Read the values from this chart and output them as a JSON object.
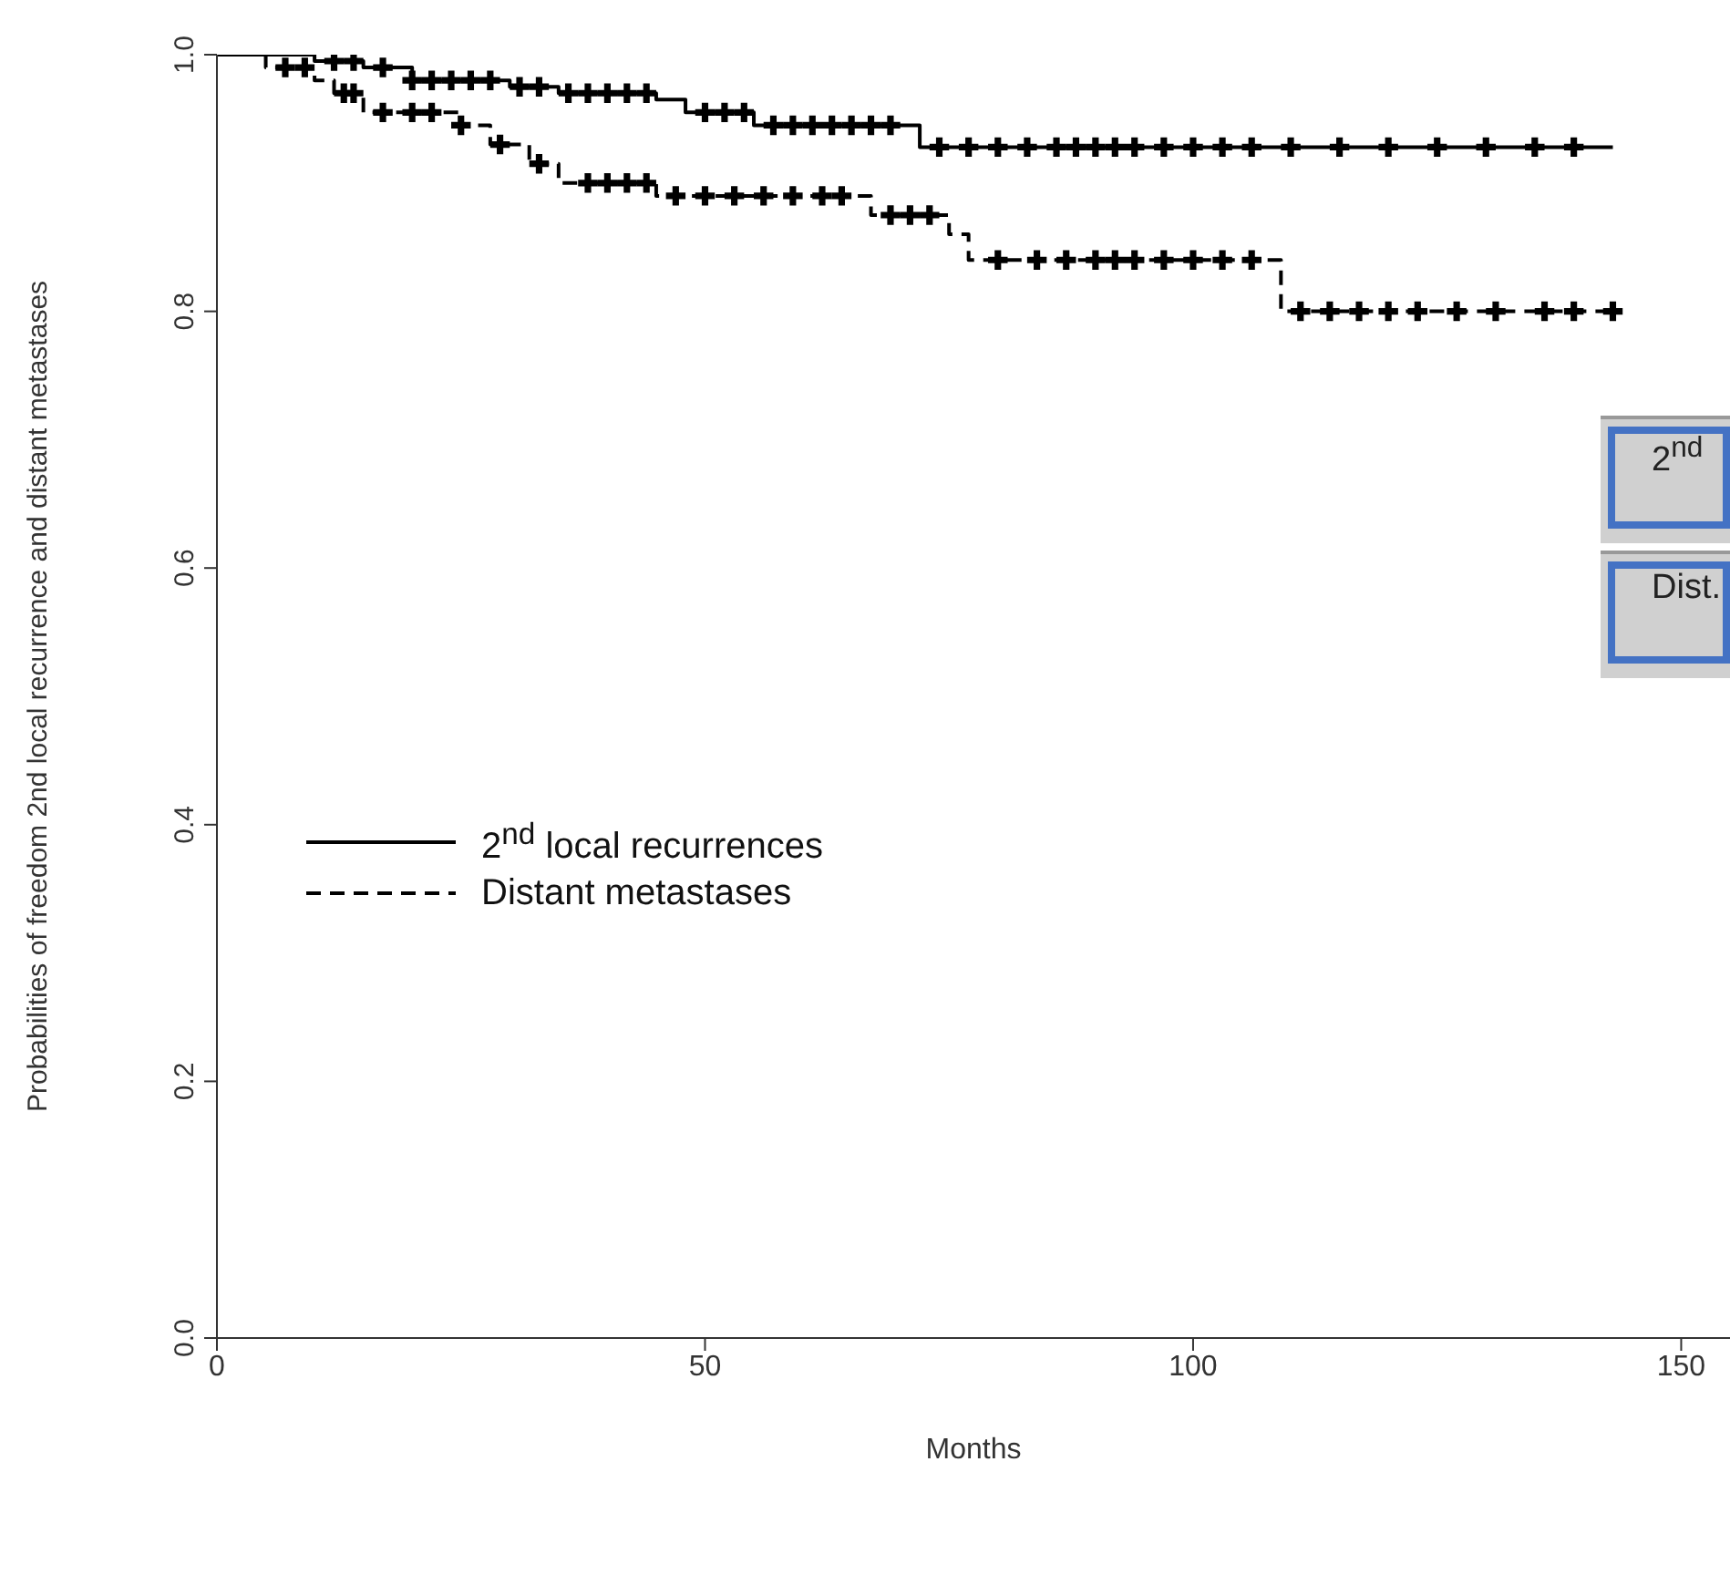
{
  "chart_data": {
    "type": "step",
    "xlabel": "Months",
    "ylabel": "Probabilities of freedom 2nd local recurrence and distant metastases",
    "xlim": [
      0,
      155
    ],
    "xticks": [
      0,
      50,
      100,
      150
    ],
    "ylim": [
      0,
      1
    ],
    "yticks": [
      {
        "value": 0,
        "label": "0.0"
      },
      {
        "value": 0.2,
        "label": "0.2"
      },
      {
        "value": 0.4,
        "label": "0.4"
      },
      {
        "value": 0.6,
        "label": "0.6"
      },
      {
        "value": 0.8,
        "label": "0.8"
      },
      {
        "value": 1,
        "label": "1.0"
      }
    ],
    "legend": "left",
    "series": [
      {
        "name": "2$^{nd}$ local recurrences",
        "color": "#000000",
        "line_style": "solid",
        "x": [
          0,
          10,
          15,
          20,
          30,
          35,
          45,
          48,
          55,
          72,
          143
        ],
        "values": [
          1,
          0.995,
          0.99,
          0.98,
          0.975,
          0.97,
          0.965,
          0.955,
          0.945,
          0.928,
          0.928
        ]
      },
      {
        "name": "Distant metastases",
        "color": "#000000",
        "line_style": "dashed",
        "x": [
          0,
          5,
          10,
          12,
          15,
          25,
          28,
          32,
          35,
          45,
          67,
          75,
          77,
          109,
          143
        ],
        "values": [
          1,
          0.99,
          0.98,
          0.97,
          0.955,
          0.945,
          0.93,
          0.915,
          0.9,
          0.89,
          0.875,
          0.86,
          0.84,
          0.8,
          0.8
        ]
      },
      {
        "type": "scatter",
        "color": "#000000",
        "marker": "cross",
        "x": [
          12,
          14,
          17,
          20,
          22,
          24,
          26,
          28,
          31,
          33,
          36,
          38,
          40,
          42,
          44,
          50,
          52,
          54,
          57,
          59,
          61,
          63,
          65,
          67,
          69,
          74,
          77,
          80,
          83,
          86,
          88,
          90,
          92,
          94,
          97,
          100,
          103,
          106,
          110,
          115,
          120,
          125,
          130,
          135,
          139
        ],
        "values": [
          0.995,
          0.995,
          0.99,
          0.98,
          0.98,
          0.98,
          0.98,
          0.98,
          0.975,
          0.975,
          0.97,
          0.97,
          0.97,
          0.97,
          0.97,
          0.955,
          0.955,
          0.955,
          0.945,
          0.945,
          0.945,
          0.945,
          0.945,
          0.945,
          0.945,
          0.928,
          0.928,
          0.928,
          0.928,
          0.928,
          0.928,
          0.928,
          0.928,
          0.928,
          0.928,
          0.928,
          0.928,
          0.928,
          0.928,
          0.928,
          0.928,
          0.928,
          0.928,
          0.928,
          0.928
        ]
      },
      {
        "type": "scatter",
        "color": "#000000",
        "marker": "cross",
        "x": [
          7,
          9,
          13,
          14,
          17,
          20,
          22,
          25,
          29,
          33,
          38,
          40,
          42,
          44,
          47,
          50,
          53,
          56,
          59,
          62,
          64,
          69,
          71,
          73,
          80,
          84,
          87,
          90,
          92,
          94,
          97,
          100,
          103,
          106,
          111,
          114,
          117,
          120,
          123,
          127,
          131,
          136,
          139,
          143
        ],
        "values": [
          0.99,
          0.99,
          0.97,
          0.97,
          0.955,
          0.955,
          0.955,
          0.945,
          0.93,
          0.915,
          0.9,
          0.9,
          0.9,
          0.9,
          0.89,
          0.89,
          0.89,
          0.89,
          0.89,
          0.89,
          0.89,
          0.875,
          0.875,
          0.875,
          0.84,
          0.84,
          0.84,
          0.84,
          0.84,
          0.84,
          0.84,
          0.84,
          0.84,
          0.84,
          0.8,
          0.8,
          0.8,
          0.8,
          0.8,
          0.8,
          0.8,
          0.8,
          0.8,
          0.8
        ]
      }
    ],
    "annotations": [
      "2$^{nd}$",
      "Dist."
    ]
  }
}
